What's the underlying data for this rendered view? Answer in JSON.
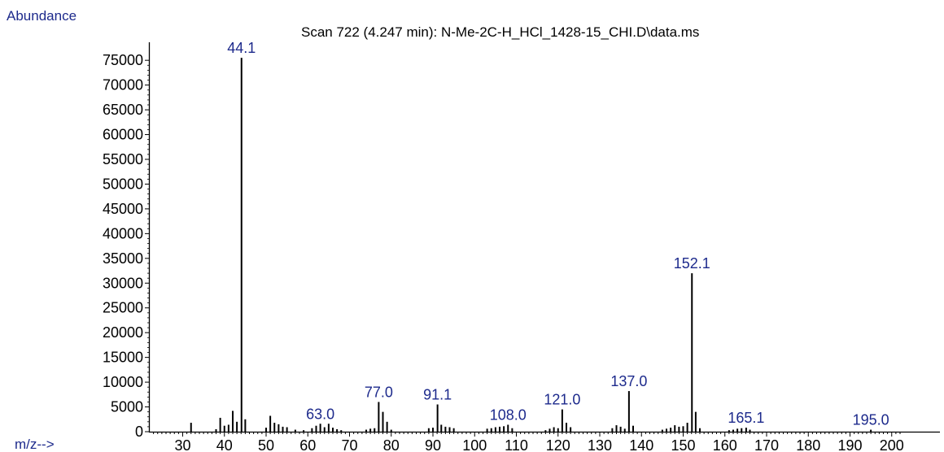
{
  "chart_data": {
    "type": "bar",
    "title": "Scan 722 (4.247 min): N-Me-2C-H_HCl_1428-15_CHI.D\\data.ms",
    "ylabel": "Abundance",
    "xlabel": "m/z-->",
    "xlim": [
      22,
      203
    ],
    "ylim": [
      0,
      77000
    ],
    "grid": false,
    "yticks": [
      "0",
      "5000",
      "10000",
      "15000",
      "20000",
      "25000",
      "30000",
      "35000",
      "40000",
      "45000",
      "50000",
      "55000",
      "60000",
      "65000",
      "70000",
      "75000"
    ],
    "xticks": [
      "30",
      "40",
      "50",
      "60",
      "70",
      "80",
      "90",
      "100",
      "110",
      "120",
      "130",
      "140",
      "150",
      "160",
      "170",
      "180",
      "190",
      "200"
    ],
    "peaks": [
      [
        32,
        1800
      ],
      [
        38,
        500
      ],
      [
        39,
        2800
      ],
      [
        40,
        1200
      ],
      [
        41,
        1400
      ],
      [
        42,
        4200
      ],
      [
        43,
        2000
      ],
      [
        44.1,
        75500
      ],
      [
        45,
        2500
      ],
      [
        50,
        800
      ],
      [
        51,
        3200
      ],
      [
        52,
        1800
      ],
      [
        53,
        1500
      ],
      [
        54,
        1000
      ],
      [
        55,
        900
      ],
      [
        57,
        400
      ],
      [
        59,
        300
      ],
      [
        61,
        700
      ],
      [
        62,
        1200
      ],
      [
        63,
        1600
      ],
      [
        64,
        900
      ],
      [
        65,
        1600
      ],
      [
        66,
        800
      ],
      [
        67,
        500
      ],
      [
        68,
        300
      ],
      [
        74,
        400
      ],
      [
        75,
        600
      ],
      [
        76,
        700
      ],
      [
        77,
        6000
      ],
      [
        78,
        4000
      ],
      [
        79,
        2000
      ],
      [
        80,
        400
      ],
      [
        89,
        700
      ],
      [
        90,
        800
      ],
      [
        91.1,
        5500
      ],
      [
        92,
        1400
      ],
      [
        93,
        1000
      ],
      [
        94,
        900
      ],
      [
        95,
        700
      ],
      [
        103,
        600
      ],
      [
        104,
        700
      ],
      [
        105,
        900
      ],
      [
        106,
        1000
      ],
      [
        107,
        1100
      ],
      [
        108,
        1400
      ],
      [
        109,
        700
      ],
      [
        117,
        300
      ],
      [
        118,
        600
      ],
      [
        119,
        900
      ],
      [
        120,
        700
      ],
      [
        121,
        4500
      ],
      [
        122,
        1800
      ],
      [
        123,
        900
      ],
      [
        133,
        700
      ],
      [
        134,
        1300
      ],
      [
        135,
        1000
      ],
      [
        136,
        600
      ],
      [
        137,
        8200
      ],
      [
        138,
        1200
      ],
      [
        145,
        400
      ],
      [
        146,
        600
      ],
      [
        147,
        800
      ],
      [
        148,
        1300
      ],
      [
        149,
        1000
      ],
      [
        150,
        1100
      ],
      [
        151,
        1800
      ],
      [
        152.1,
        32000
      ],
      [
        153,
        4000
      ],
      [
        154,
        700
      ],
      [
        161,
        300
      ],
      [
        162,
        400
      ],
      [
        163,
        600
      ],
      [
        164,
        700
      ],
      [
        165.1,
        800
      ],
      [
        166,
        400
      ],
      [
        195,
        400
      ]
    ],
    "peak_labels": [
      {
        "x": 44.1,
        "y": 75500,
        "text": "44.1"
      },
      {
        "x": 63,
        "y": 1600,
        "text": "63.0"
      },
      {
        "x": 77,
        "y": 6000,
        "text": "77.0"
      },
      {
        "x": 91.1,
        "y": 5500,
        "text": "91.1"
      },
      {
        "x": 108,
        "y": 1400,
        "text": "108.0"
      },
      {
        "x": 121,
        "y": 4500,
        "text": "121.0"
      },
      {
        "x": 137,
        "y": 8200,
        "text": "137.0"
      },
      {
        "x": 152.1,
        "y": 32000,
        "text": "152.1"
      },
      {
        "x": 165.1,
        "y": 800,
        "text": "165.1"
      },
      {
        "x": 195,
        "y": 400,
        "text": "195.0"
      }
    ]
  }
}
